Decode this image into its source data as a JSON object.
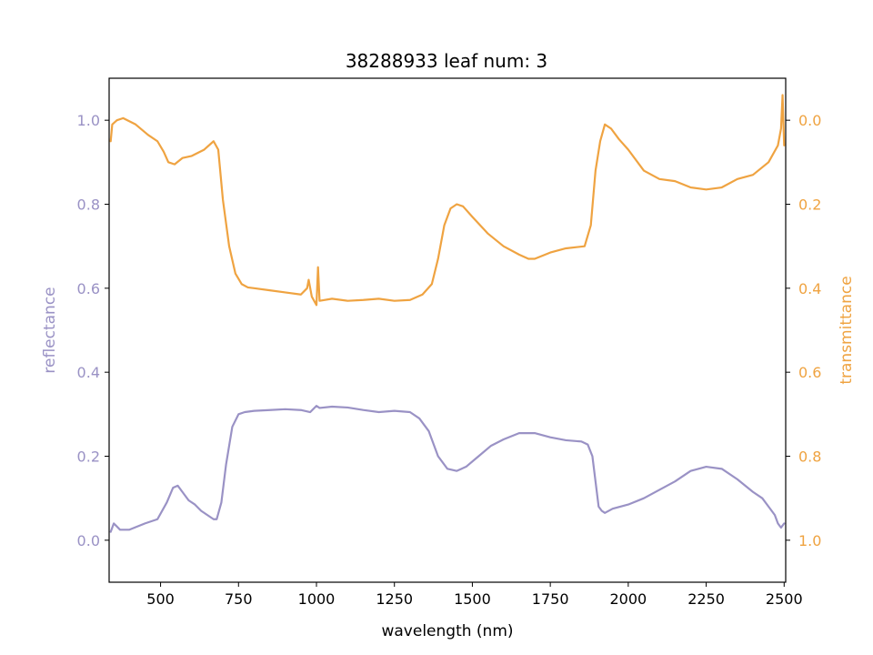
{
  "chart_data": {
    "type": "line",
    "title": "38288933 leaf num: 3",
    "xlabel": "wavelength (nm)",
    "xlim": [
      335,
      2505
    ],
    "xticks": [
      500,
      750,
      1000,
      1250,
      1500,
      1750,
      2000,
      2250,
      2500
    ],
    "grid": false,
    "legend": "none",
    "left_axis": {
      "label": "reflectance",
      "ylim": [
        -0.1,
        1.1
      ],
      "ticks": [
        0.0,
        0.2,
        0.4,
        0.6,
        0.8,
        1.0
      ],
      "tick_labels": [
        "0.0",
        "0.2",
        "0.4",
        "0.6",
        "0.8",
        "1.0"
      ],
      "color": "#9a92c5"
    },
    "right_axis": {
      "label": "transmittance",
      "inverted": true,
      "ylim": [
        1.1,
        -0.1
      ],
      "ticks": [
        0.0,
        0.2,
        0.4,
        0.6,
        0.8,
        1.0
      ],
      "tick_labels": [
        "0.0",
        "0.2",
        "0.4",
        "0.6",
        "0.8",
        "1.0"
      ],
      "color": "#efa341"
    },
    "series": [
      {
        "axis": "left",
        "color": "#9a92c5",
        "x": [
          340,
          350,
          370,
          400,
          450,
          490,
          520,
          540,
          555,
          570,
          590,
          610,
          630,
          650,
          670,
          680,
          695,
          710,
          730,
          750,
          770,
          800,
          850,
          900,
          950,
          980,
          1000,
          1010,
          1050,
          1100,
          1150,
          1200,
          1250,
          1300,
          1330,
          1360,
          1390,
          1420,
          1450,
          1480,
          1520,
          1560,
          1600,
          1650,
          1700,
          1750,
          1800,
          1850,
          1870,
          1885,
          1895,
          1905,
          1915,
          1925,
          1950,
          2000,
          2050,
          2100,
          2150,
          2200,
          2250,
          2300,
          2350,
          2400,
          2430,
          2450,
          2470,
          2480,
          2490,
          2500
        ],
        "y": [
          0.02,
          0.04,
          0.025,
          0.025,
          0.04,
          0.05,
          0.09,
          0.125,
          0.13,
          0.115,
          0.095,
          0.085,
          0.07,
          0.06,
          0.05,
          0.05,
          0.09,
          0.18,
          0.27,
          0.3,
          0.305,
          0.308,
          0.31,
          0.312,
          0.31,
          0.305,
          0.32,
          0.315,
          0.318,
          0.316,
          0.31,
          0.305,
          0.308,
          0.305,
          0.29,
          0.26,
          0.2,
          0.17,
          0.165,
          0.175,
          0.2,
          0.225,
          0.24,
          0.255,
          0.255,
          0.245,
          0.238,
          0.235,
          0.228,
          0.2,
          0.14,
          0.08,
          0.07,
          0.065,
          0.075,
          0.085,
          0.1,
          0.12,
          0.14,
          0.165,
          0.175,
          0.17,
          0.145,
          0.115,
          0.1,
          0.08,
          0.06,
          0.04,
          0.03,
          0.04
        ]
      },
      {
        "axis": "right",
        "color": "#efa341",
        "x": [
          340,
          345,
          360,
          380,
          420,
          460,
          490,
          510,
          525,
          545,
          570,
          600,
          640,
          670,
          685,
          700,
          720,
          740,
          760,
          780,
          800,
          850,
          900,
          950,
          970,
          975,
          985,
          1000,
          1005,
          1010,
          1050,
          1100,
          1150,
          1200,
          1250,
          1300,
          1340,
          1370,
          1390,
          1410,
          1430,
          1450,
          1470,
          1500,
          1550,
          1600,
          1650,
          1680,
          1700,
          1750,
          1800,
          1860,
          1880,
          1895,
          1910,
          1925,
          1945,
          1970,
          2000,
          2050,
          2100,
          2150,
          2200,
          2250,
          2300,
          2350,
          2400,
          2450,
          2480,
          2490,
          2495,
          2500
        ],
        "y": [
          0.05,
          0.01,
          0.0,
          -0.005,
          0.01,
          0.035,
          0.05,
          0.075,
          0.1,
          0.105,
          0.09,
          0.085,
          0.07,
          0.05,
          0.07,
          0.19,
          0.3,
          0.365,
          0.39,
          0.398,
          0.4,
          0.405,
          0.41,
          0.415,
          0.4,
          0.38,
          0.42,
          0.44,
          0.35,
          0.43,
          0.425,
          0.43,
          0.428,
          0.425,
          0.43,
          0.428,
          0.415,
          0.39,
          0.33,
          0.25,
          0.21,
          0.2,
          0.205,
          0.23,
          0.27,
          0.3,
          0.32,
          0.33,
          0.33,
          0.315,
          0.305,
          0.3,
          0.25,
          0.12,
          0.05,
          0.01,
          0.02,
          0.045,
          0.07,
          0.12,
          0.14,
          0.145,
          0.16,
          0.165,
          0.16,
          0.14,
          0.13,
          0.1,
          0.06,
          0.02,
          -0.06,
          0.06
        ]
      }
    ]
  }
}
